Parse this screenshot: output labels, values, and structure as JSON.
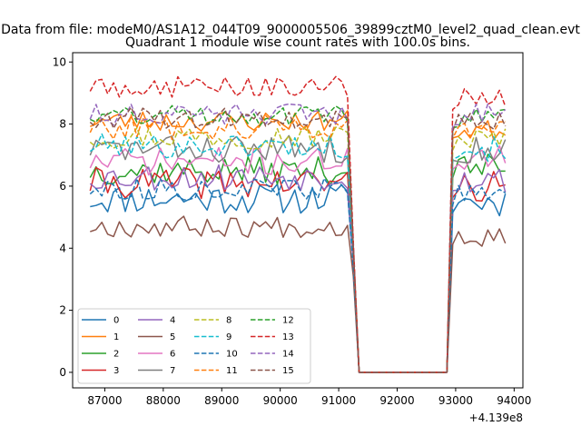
{
  "chart_data": {
    "type": "line",
    "suptitle": "Data from file: modeM0/AS1A12_044T09_9000005506_39899cztM0_level2_quad_clean.evt",
    "title": "Quadrant 1 module wise count rates with 100.0s bins.",
    "xlabel": "",
    "ylabel": "",
    "x_offset_label": "+4.139e8",
    "xlim": [
      86450,
      94150
    ],
    "ylim": [
      -0.5,
      10.3
    ],
    "xticks": [
      87000,
      88000,
      89000,
      90000,
      91000,
      92000,
      93000,
      94000
    ],
    "yticks": [
      0,
      2,
      4,
      6,
      8,
      10
    ],
    "grid": false,
    "legend_position": "lower-left",
    "legend_columns": 4,
    "bin_seconds": 100,
    "segments": {
      "seg1": {
        "start": 86750,
        "end": 91150,
        "step": 100
      },
      "drop": [
        91250,
        91350
      ],
      "gap_end": 92850,
      "seg2": {
        "start": 92950,
        "end": 93850,
        "step": 100
      }
    },
    "series": [
      {
        "name": "0",
        "color": "#1f77b4",
        "dash": "solid",
        "level": 5.6,
        "drop": 3.5,
        "seg2": 5.5,
        "jitter": 0.5,
        "seed": 11
      },
      {
        "name": "1",
        "color": "#ff7f0e",
        "dash": "solid",
        "level": 8.1,
        "drop": 3.9,
        "seg2": 7.8,
        "jitter": 0.35,
        "seed": 23
      },
      {
        "name": "2",
        "color": "#2ca02c",
        "dash": "solid",
        "level": 6.5,
        "drop": 3.6,
        "seg2": 6.6,
        "jitter": 0.45,
        "seed": 37
      },
      {
        "name": "3",
        "color": "#d62728",
        "dash": "solid",
        "level": 6.1,
        "drop": 3.5,
        "seg2": 6.0,
        "jitter": 0.5,
        "seed": 41
      },
      {
        "name": "4",
        "color": "#9467bd",
        "dash": "solid",
        "level": 6.3,
        "drop": 3.5,
        "seg2": 6.2,
        "jitter": 0.45,
        "seed": 53
      },
      {
        "name": "5",
        "color": "#8c564b",
        "dash": "solid",
        "level": 4.7,
        "drop": 3.1,
        "seg2": 4.4,
        "jitter": 0.35,
        "seed": 67
      },
      {
        "name": "6",
        "color": "#e377c2",
        "dash": "solid",
        "level": 6.8,
        "drop": 3.7,
        "seg2": 6.9,
        "jitter": 0.45,
        "seed": 71
      },
      {
        "name": "7",
        "color": "#7f7f7f",
        "dash": "solid",
        "level": 7.2,
        "drop": 3.8,
        "seg2": 7.2,
        "jitter": 0.45,
        "seed": 83
      },
      {
        "name": "8",
        "color": "#bcbd22",
        "dash": "dashed",
        "level": 7.6,
        "drop": 3.9,
        "seg2": 7.5,
        "jitter": 0.4,
        "seed": 97
      },
      {
        "name": "9",
        "color": "#17becf",
        "dash": "dashed",
        "level": 7.3,
        "drop": 3.8,
        "seg2": 7.2,
        "jitter": 0.4,
        "seed": 101
      },
      {
        "name": "10",
        "color": "#1f77b4",
        "dash": "dashed",
        "level": 5.9,
        "drop": 3.4,
        "seg2": 5.7,
        "jitter": 0.35,
        "seed": 113
      },
      {
        "name": "11",
        "color": "#ff7f0e",
        "dash": "dashed",
        "level": 7.9,
        "drop": 4.0,
        "seg2": 7.9,
        "jitter": 0.4,
        "seed": 127
      },
      {
        "name": "12",
        "color": "#2ca02c",
        "dash": "dashed",
        "level": 8.3,
        "drop": 4.0,
        "seg2": 8.2,
        "jitter": 0.35,
        "seed": 131
      },
      {
        "name": "13",
        "color": "#d62728",
        "dash": "dashed",
        "level": 9.2,
        "drop": 4.2,
        "seg2": 8.8,
        "jitter": 0.35,
        "seed": 149
      },
      {
        "name": "14",
        "color": "#9467bd",
        "dash": "dashed",
        "level": 8.3,
        "drop": 4.0,
        "seg2": 8.3,
        "jitter": 0.35,
        "seed": 151
      },
      {
        "name": "15",
        "color": "#8c564b",
        "dash": "dashed",
        "level": 8.2,
        "drop": 4.0,
        "seg2": 8.1,
        "jitter": 0.35,
        "seed": 163
      }
    ]
  }
}
